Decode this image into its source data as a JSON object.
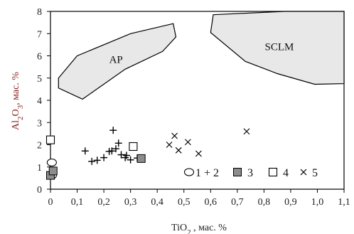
{
  "chart_data": {
    "type": "scatter",
    "xlabel": {
      "main": "TiO",
      "sub": "2",
      "rest": " , мас. %"
    },
    "ylabel": {
      "pre": "Al",
      "sub1": "2",
      "mid": "O",
      "sub2": "3",
      "rest": ", мас. %"
    },
    "xlim": [
      0,
      1.1
    ],
    "ylim": [
      0,
      8
    ],
    "x_ticks": [
      "0",
      "0,1",
      "0,2",
      "0,3",
      "0,4",
      "0,5",
      "0,6",
      "0,7",
      "0,8",
      "0,9",
      "1,0",
      "1,1"
    ],
    "y_ticks": [
      "0",
      "1",
      "2",
      "3",
      "4",
      "5",
      "6",
      "7",
      "8"
    ],
    "fields": [
      {
        "name": "AP",
        "points": [
          [
            0.03,
            5.0
          ],
          [
            0.1,
            6.0
          ],
          [
            0.3,
            7.0
          ],
          [
            0.46,
            7.45
          ],
          [
            0.47,
            6.85
          ],
          [
            0.42,
            6.2
          ],
          [
            0.28,
            5.4
          ],
          [
            0.12,
            4.05
          ],
          [
            0.03,
            4.55
          ]
        ]
      },
      {
        "name": "SCLM",
        "points": [
          [
            0.61,
            7.85
          ],
          [
            0.88,
            8.0
          ],
          [
            1.1,
            8.0
          ],
          [
            1.1,
            4.75
          ],
          [
            0.99,
            4.72
          ],
          [
            0.85,
            5.2
          ],
          [
            0.73,
            5.75
          ],
          [
            0.6,
            7.05
          ]
        ]
      }
    ],
    "series": [
      {
        "name": "1",
        "marker": "circle",
        "points": [
          [
            0.005,
            1.2
          ],
          [
            0.005,
            0.62
          ]
        ]
      },
      {
        "name": "2",
        "marker": "plus",
        "points": [
          [
            0.13,
            1.72
          ],
          [
            0.155,
            1.25
          ],
          [
            0.175,
            1.3
          ],
          [
            0.2,
            1.42
          ],
          [
            0.22,
            1.7
          ],
          [
            0.23,
            1.72
          ],
          [
            0.235,
            2.65
          ],
          [
            0.245,
            1.82
          ],
          [
            0.255,
            2.07
          ],
          [
            0.265,
            1.55
          ],
          [
            0.28,
            1.42
          ],
          [
            0.285,
            1.52
          ],
          [
            0.3,
            1.32
          ],
          [
            0.325,
            1.4
          ]
        ]
      },
      {
        "name": "3",
        "marker": "filled-square",
        "points": [
          [
            0.0,
            0.62
          ],
          [
            0.01,
            0.82
          ],
          [
            0.34,
            1.38
          ]
        ]
      },
      {
        "name": "4",
        "marker": "open-square",
        "points": [
          [
            0.0,
            2.22
          ],
          [
            0.31,
            1.92
          ]
        ]
      },
      {
        "name": "5",
        "marker": "cross",
        "points": [
          [
            0.445,
            2.0
          ],
          [
            0.465,
            2.4
          ],
          [
            0.48,
            1.75
          ],
          [
            0.515,
            2.12
          ],
          [
            0.555,
            1.6
          ],
          [
            0.735,
            2.6
          ]
        ]
      }
    ],
    "legend": {
      "placement": "bottom-right",
      "items": [
        {
          "text": "1 + 2"
        },
        {
          "text": "3"
        },
        {
          "text": "4"
        },
        {
          "text": "5"
        }
      ]
    },
    "grid": false,
    "colors": {
      "field_fill": "#e8e8e8",
      "marker_fill": "#8c8c8c",
      "ylabel": "#8a1e1e"
    }
  }
}
